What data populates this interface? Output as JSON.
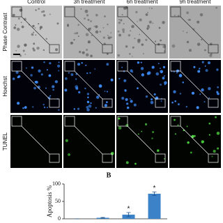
{
  "figure": {
    "column_headers": [
      "Control",
      "3h treatment",
      "6h treatment",
      "9h treatment"
    ],
    "row_labels": [
      "Phase Contrast",
      "Hoechst",
      "TUNEL"
    ],
    "panel_label": "B"
  },
  "chart_data": {
    "type": "bar",
    "categories": [
      null,
      null,
      null,
      null
    ],
    "values": [
      0,
      3,
      12,
      72
    ],
    "errors": [
      0,
      1,
      6,
      5
    ],
    "significance": [
      null,
      null,
      "*",
      "*"
    ],
    "ylabel": "Apoptosis %",
    "ylim": [
      0,
      100
    ],
    "yticks": [
      0,
      50,
      100
    ],
    "color": "#3b82c8"
  }
}
